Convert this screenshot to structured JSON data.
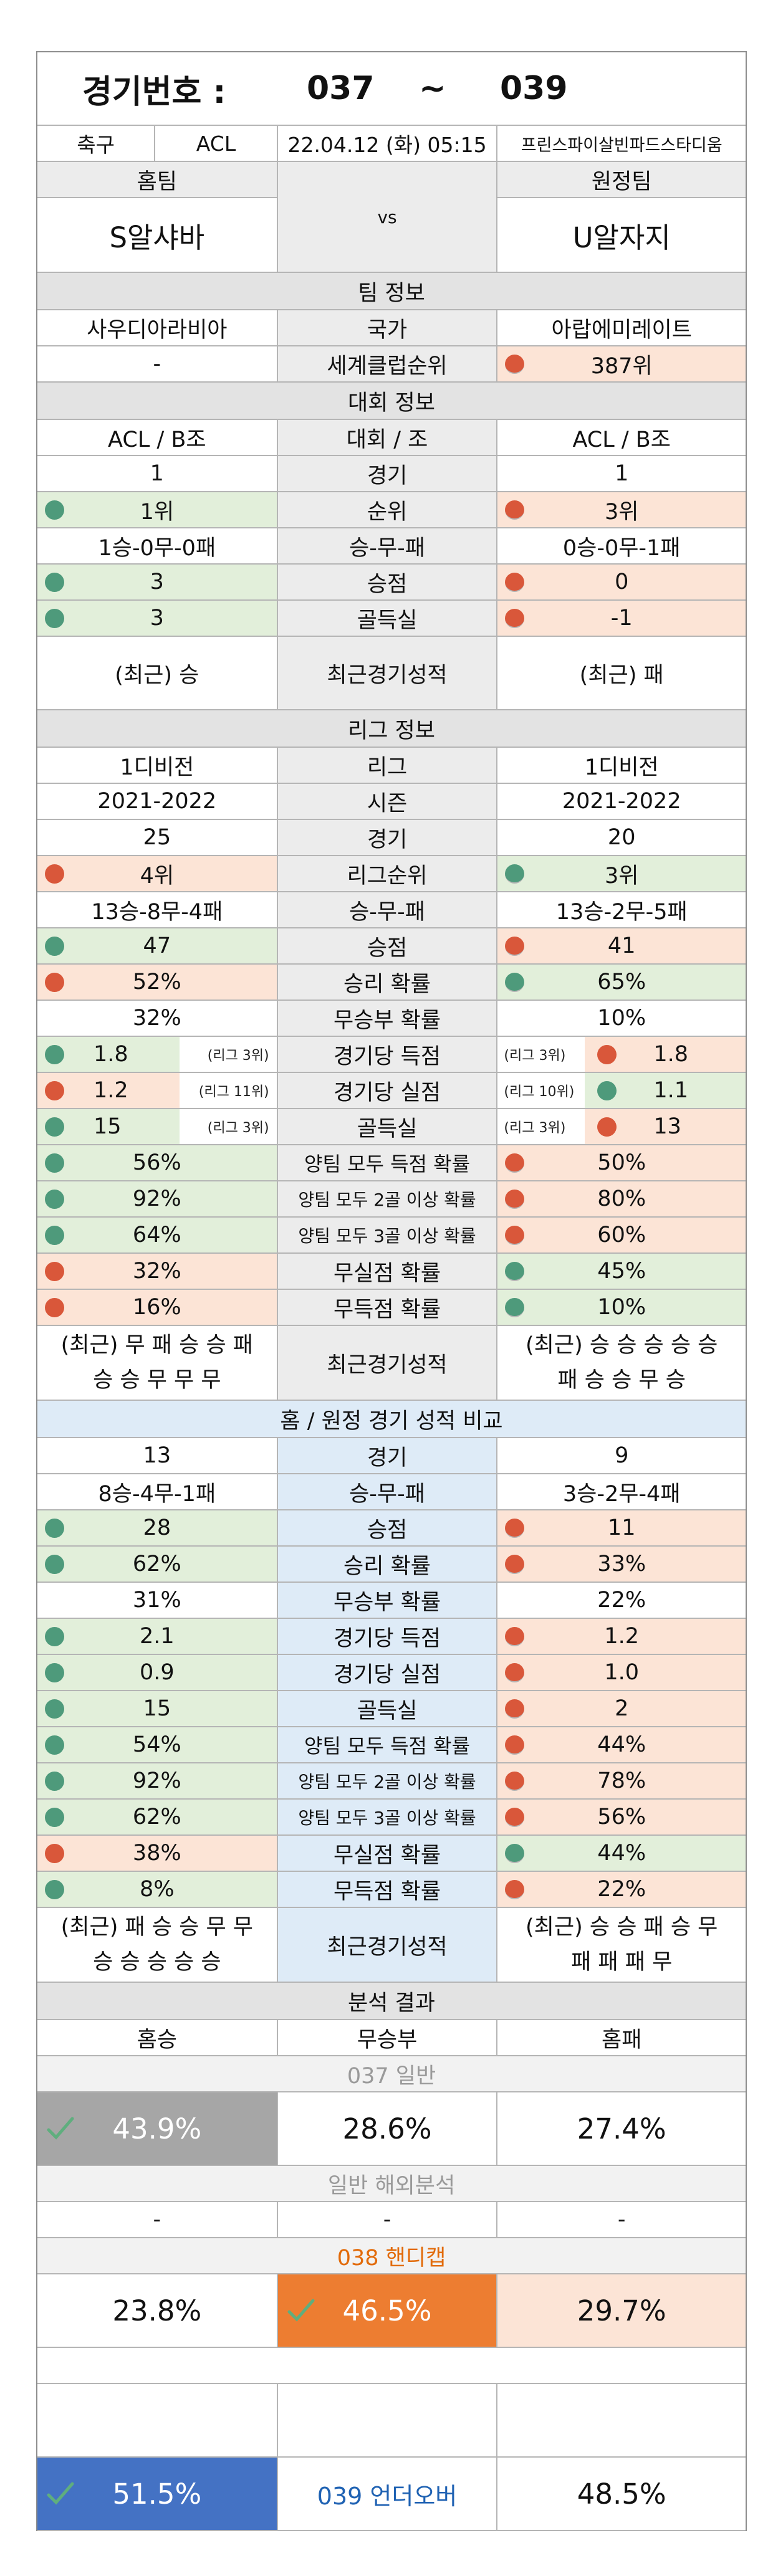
{
  "header": {
    "label": "경기번호 :",
    "from": "037",
    "sep": "~",
    "to": "039"
  },
  "match": {
    "sport": "축구",
    "league": "ACL",
    "datetime": "22.04.12 (화) 05:15",
    "venue": "프린스파이살빈파드스타디움"
  },
  "teams": {
    "home_label": "홈팀",
    "away_label": "원정팀",
    "home": "S알샤바",
    "vs": "vs",
    "away": "U알자지"
  },
  "team_info": {
    "title": "팀 정보",
    "rows": [
      {
        "home": "사우디아라비아",
        "label": "국가",
        "away": "아랍에미레이트"
      },
      {
        "home": "-",
        "label": "세계클럽순위",
        "away": "387위"
      }
    ]
  },
  "tournament_info": {
    "title": "대회 정보",
    "rows": [
      {
        "home": "ACL / B조",
        "label": "대회 / 조",
        "away": "ACL / B조"
      },
      {
        "home": "1",
        "label": "경기",
        "away": "1"
      },
      {
        "home": "1위",
        "label": "순위",
        "away": "3위"
      },
      {
        "home": "1승-0무-0패",
        "label": "승-무-패",
        "away": "0승-0무-1패"
      },
      {
        "home": "3",
        "label": "승점",
        "away": "0"
      },
      {
        "home": "3",
        "label": "골득실",
        "away": "-1"
      },
      {
        "home": "(최근) 승",
        "label": "최근경기성적",
        "away": "(최근) 패"
      }
    ]
  },
  "league_info": {
    "title": "리그 정보",
    "rows": [
      {
        "home": "1디비전",
        "label": "리그",
        "away": "1디비전"
      },
      {
        "home": "2021-2022",
        "label": "시즌",
        "away": "2021-2022"
      },
      {
        "home": "25",
        "label": "경기",
        "away": "20"
      },
      {
        "home": "4위",
        "label": "리그순위",
        "away": "3위"
      },
      {
        "home": "13승-8무-4패",
        "label": "승-무-패",
        "away": "13승-2무-5패"
      },
      {
        "home": "47",
        "label": "승점",
        "away": "41"
      },
      {
        "home": "52%",
        "label": "승리 확률",
        "away": "65%"
      },
      {
        "home": "32%",
        "label": "무승부 확률",
        "away": "10%"
      },
      {
        "home": "1.8",
        "home_rank": "(리그 3위)",
        "label": "경기당 득점",
        "away_rank": "(리그 3위)",
        "away": "1.8"
      },
      {
        "home": "1.2",
        "home_rank": "(리그 11위)",
        "label": "경기당 실점",
        "away_rank": "(리그 10위)",
        "away": "1.1"
      },
      {
        "home": "15",
        "home_rank": "(리그 3위)",
        "label": "골득실",
        "away_rank": "(리그 3위)",
        "away": "13"
      },
      {
        "home": "56%",
        "label": "양팀 모두 득점 확률",
        "away": "50%"
      },
      {
        "home": "92%",
        "label": "양팀 모두 2골 이상 확률",
        "away": "80%"
      },
      {
        "home": "64%",
        "label": "양팀 모두 3골 이상 확률",
        "away": "60%"
      },
      {
        "home": "32%",
        "label": "무실점 확률",
        "away": "45%"
      },
      {
        "home": "16%",
        "label": "무득점 확률",
        "away": "10%"
      }
    ],
    "recent": {
      "home_1": "(최근) 무 패 승 승 패",
      "home_2": "승 승 무 무 무",
      "label": "최근경기성적",
      "away_1": "(최근) 승 승 승 승 승",
      "away_2": "패 승 승 무 승"
    }
  },
  "home_away": {
    "title": "홈 / 원정 경기 성적 비교",
    "rows": [
      {
        "home": "13",
        "label": "경기",
        "away": "9"
      },
      {
        "home": "8승-4무-1패",
        "label": "승-무-패",
        "away": "3승-2무-4패"
      },
      {
        "home": "28",
        "label": "승점",
        "away": "11"
      },
      {
        "home": "62%",
        "label": "승리 확률",
        "away": "33%"
      },
      {
        "home": "31%",
        "label": "무승부 확률",
        "away": "22%"
      },
      {
        "home": "2.1",
        "label": "경기당 득점",
        "away": "1.2"
      },
      {
        "home": "0.9",
        "label": "경기당 실점",
        "away": "1.0"
      },
      {
        "home": "15",
        "label": "골득실",
        "away": "2"
      },
      {
        "home": "54%",
        "label": "양팀 모두 득점 확률",
        "away": "44%"
      },
      {
        "home": "92%",
        "label": "양팀 모두 2골 이상 확률",
        "away": "78%"
      },
      {
        "home": "62%",
        "label": "양팀 모두 3골 이상 확률",
        "away": "56%"
      },
      {
        "home": "38%",
        "label": "무실점 확률",
        "away": "44%"
      },
      {
        "home": "8%",
        "label": "무득점 확률",
        "away": "22%"
      }
    ],
    "recent": {
      "home_1": "(최근) 패 승 승 무 무",
      "home_2": "승 승 승 승 승",
      "label": "최근경기성적",
      "away_1": "(최근) 승 승 패 승 무",
      "away_2": "패 패 패 무"
    }
  },
  "analysis": {
    "title": "분석 결과",
    "home_win": "홈승",
    "draw": "무승부",
    "home_loss": "홈패",
    "general_title": "037 일반",
    "general": [
      "43.9%",
      "28.6%",
      "27.4%"
    ],
    "overseas_title": "일반 해외분석",
    "overseas": [
      "-",
      "-",
      "-"
    ],
    "handicap_title": "038 핸디캡",
    "handicap": [
      "23.8%",
      "46.5%",
      "29.7%"
    ],
    "underover_title": "039 언더오버",
    "underover": [
      "51.5%",
      "48.5%"
    ]
  },
  "colors": {
    "green": "#e2efda",
    "red": "#fce4d6",
    "gray": "#a6a6a6",
    "orange": "#ed7d31",
    "blue": "#4472c4",
    "orange_text": "#e26b0a",
    "blue_text": "#1f62b3"
  }
}
